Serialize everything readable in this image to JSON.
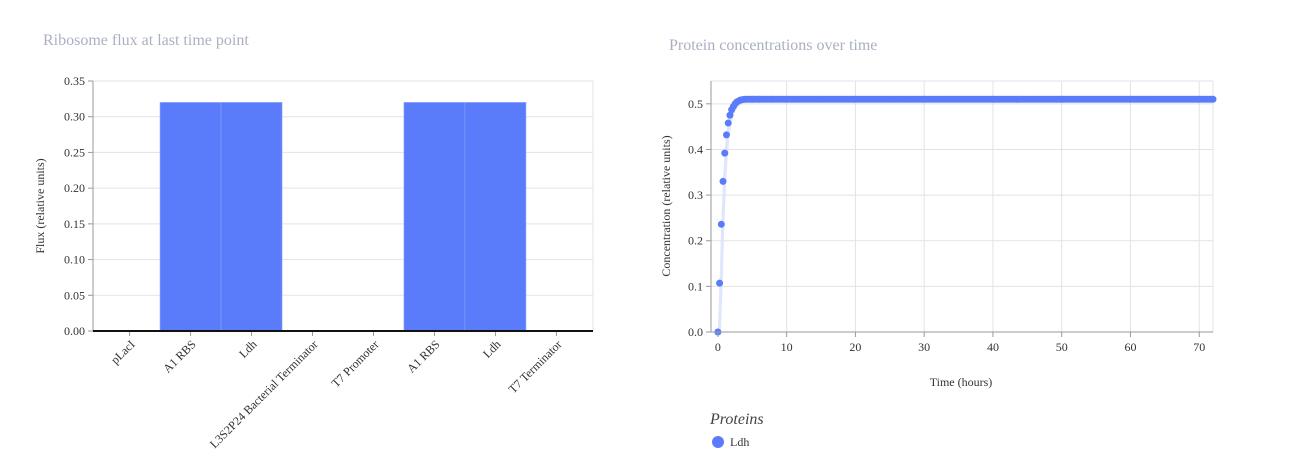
{
  "chart_data": [
    {
      "type": "bar",
      "title": "Ribosome flux at last time point",
      "xlabel": "",
      "ylabel": "Flux (relative units)",
      "ylim": [
        0,
        0.35
      ],
      "yticks": [
        "0.00",
        "0.05",
        "0.10",
        "0.15",
        "0.20",
        "0.25",
        "0.30",
        "0.35"
      ],
      "categories": [
        "pLacI",
        "A1 RBS",
        "Ldh",
        "L3S2P24 Bacterial Terminator",
        "T7 Promoter",
        "A1 RBS",
        "Ldh",
        "T7 Terminator"
      ],
      "values": [
        0,
        0.32,
        0.32,
        0,
        0,
        0.32,
        0.32,
        0
      ],
      "colors": {
        "bar": "#5b7cfa",
        "bar_edge": "#8aa0ff"
      },
      "grid": true
    },
    {
      "type": "scatter",
      "title": "Protein concentrations over time",
      "xlabel": "Time (hours)",
      "ylabel": "Concentration (relative units)",
      "xlim": [
        -1,
        72
      ],
      "ylim": [
        0,
        0.55
      ],
      "xticks": [
        0,
        10,
        20,
        30,
        40,
        50,
        60,
        70
      ],
      "yticks": [
        "0.0",
        "0.1",
        "0.2",
        "0.3",
        "0.4",
        "0.5"
      ],
      "grid": true,
      "legend": {
        "title": "Proteins",
        "placement": "bottom-left"
      },
      "series": [
        {
          "name": "Ldh",
          "color": "#5b7cfa",
          "band_color": "#dde4fd",
          "x": [
            0,
            0.25,
            0.5,
            0.75,
            1.0,
            1.25,
            1.5,
            1.75,
            2.0,
            2.25,
            2.5,
            2.75,
            3.0,
            3.25,
            3.5,
            4,
            5,
            6,
            8,
            10,
            15,
            20,
            30,
            40,
            50,
            60,
            70,
            72
          ],
          "y": [
            0.0,
            0.107,
            0.236,
            0.33,
            0.392,
            0.432,
            0.458,
            0.475,
            0.487,
            0.494,
            0.5,
            0.504,
            0.506,
            0.508,
            0.509,
            0.51,
            0.51,
            0.51,
            0.51,
            0.51,
            0.51,
            0.51,
            0.51,
            0.51,
            0.51,
            0.51,
            0.51,
            0.51
          ]
        }
      ]
    }
  ]
}
